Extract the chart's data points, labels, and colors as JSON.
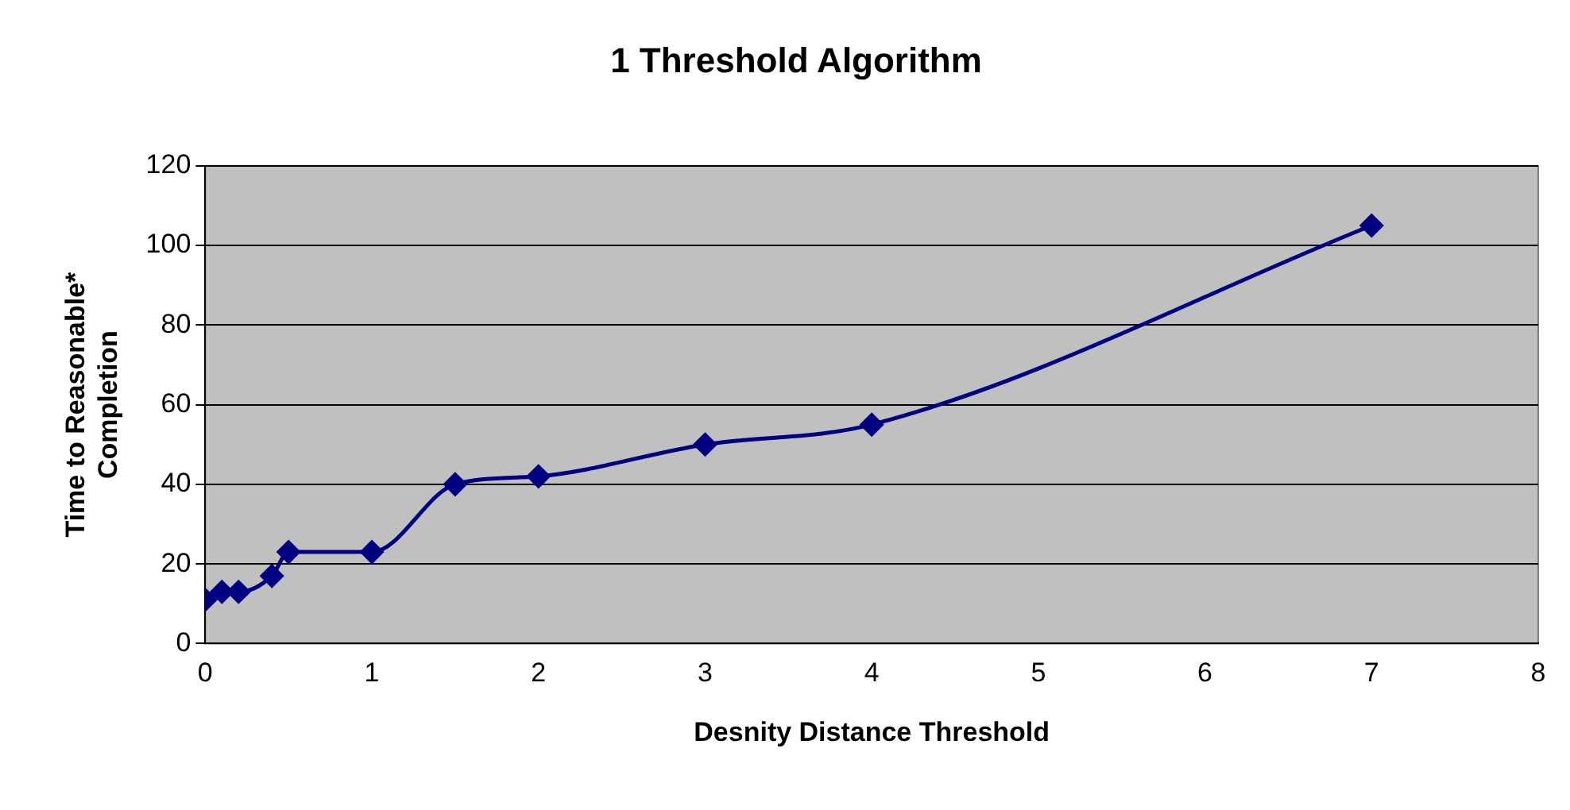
{
  "chart_data": {
    "type": "line",
    "title": "1 Threshold Algorithm",
    "xlabel": "Desnity Distance Threshold",
    "ylabel": "Time to Reasonable* Completion",
    "x": [
      0,
      0.1,
      0.2,
      0.4,
      0.5,
      1,
      1.5,
      2,
      3,
      4,
      7
    ],
    "series": [
      {
        "color": "#000080",
        "values": [
          11,
          13,
          13,
          17,
          23,
          23,
          40,
          42,
          50,
          55,
          105
        ]
      }
    ],
    "xlim": [
      0,
      8
    ],
    "xticks": [
      0,
      1,
      2,
      3,
      4,
      5,
      6,
      7,
      8
    ],
    "ylim": [
      0,
      120
    ],
    "yticks": [
      0,
      20,
      40,
      60,
      80,
      100,
      120
    ],
    "grid": "y",
    "legend": false,
    "marker": "diamond",
    "line_style": "solid"
  }
}
